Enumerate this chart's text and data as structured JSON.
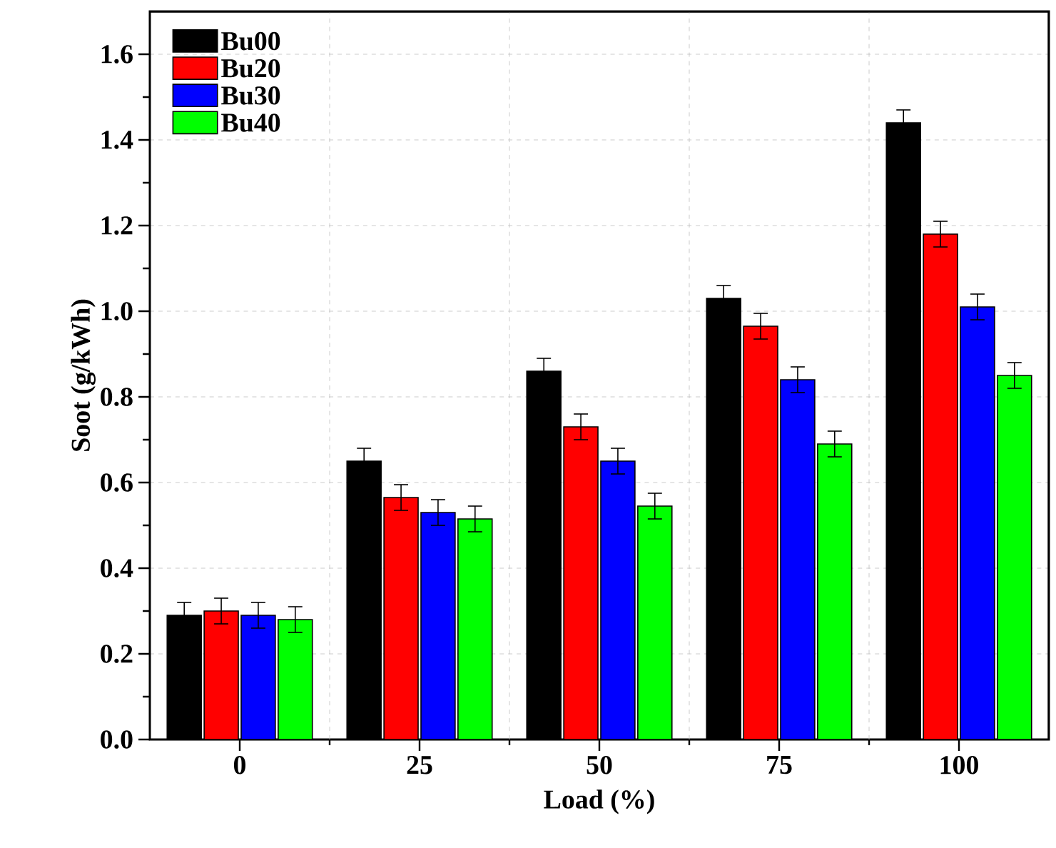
{
  "chart_data": {
    "type": "bar",
    "xlabel": "Load (%)",
    "ylabel": "Soot (g/kWh)",
    "categories": [
      "0",
      "25",
      "50",
      "75",
      "100"
    ],
    "series": [
      {
        "name": "Bu00",
        "color": "#000000",
        "values": [
          0.29,
          0.65,
          0.86,
          1.03,
          1.44
        ],
        "errors": [
          0.03,
          0.03,
          0.03,
          0.03,
          0.03
        ]
      },
      {
        "name": "Bu20",
        "color": "#ff0000",
        "values": [
          0.3,
          0.565,
          0.73,
          0.965,
          1.18
        ],
        "errors": [
          0.03,
          0.03,
          0.03,
          0.03,
          0.03
        ]
      },
      {
        "name": "Bu30",
        "color": "#0000ff",
        "values": [
          0.29,
          0.53,
          0.65,
          0.84,
          1.01
        ],
        "errors": [
          0.03,
          0.03,
          0.03,
          0.03,
          0.03
        ]
      },
      {
        "name": "Bu40",
        "color": "#00ff00",
        "values": [
          0.28,
          0.515,
          0.545,
          0.69,
          0.85
        ],
        "errors": [
          0.03,
          0.03,
          0.03,
          0.03,
          0.03
        ]
      }
    ],
    "ylim": [
      0,
      1.7
    ],
    "yticks": [
      {
        "value": 0,
        "label": "0.0"
      },
      {
        "value": 0.2,
        "label": "0.2"
      },
      {
        "value": 0.4,
        "label": "0.4"
      },
      {
        "value": 0.6,
        "label": "0.6"
      },
      {
        "value": 0.8,
        "label": "0.8"
      },
      {
        "value": 1.0,
        "label": "1.0"
      },
      {
        "value": 1.2,
        "label": "1.2"
      },
      {
        "value": 1.4,
        "label": "1.4"
      },
      {
        "value": 1.6,
        "label": "1.6"
      }
    ],
    "legend": "top left",
    "grid": true
  }
}
